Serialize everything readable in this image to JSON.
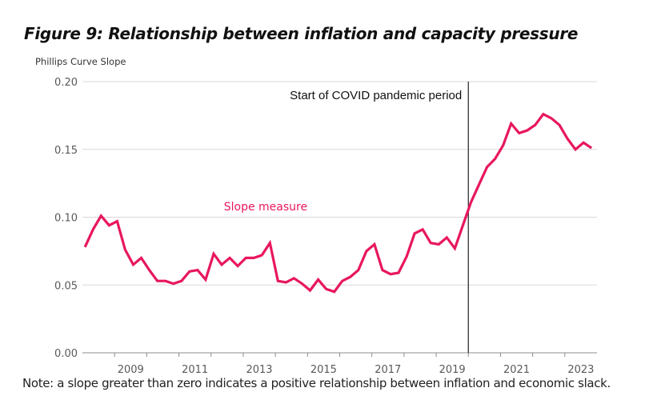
{
  "figure": {
    "title": "Figure 9: Relationship between inflation and capacity pressure",
    "note": "Note: a slope greater than zero indicates a positive relationship between inflation and economic slack."
  },
  "chart_data": {
    "type": "line",
    "title": "Figure 9: Relationship between inflation and capacity pressure",
    "xlabel": "",
    "ylabel": "Phillips Curve Slope",
    "xlim": [
      2008.0,
      2024.0
    ],
    "ylim": [
      0.0,
      0.2
    ],
    "grid": true,
    "y_ticks": [
      0.0,
      0.05,
      0.1,
      0.15,
      0.2
    ],
    "y_tick_labels": [
      "0.00",
      "0.05",
      "0.10",
      "0.15",
      "0.20"
    ],
    "x_ticks": [
      2009,
      2010,
      2011,
      2012,
      2013,
      2014,
      2015,
      2016,
      2017,
      2018,
      2019,
      2020,
      2021,
      2022,
      2023
    ],
    "x_tick_labels": [
      {
        "label": "2009",
        "at": 2009.5
      },
      {
        "label": "2011",
        "at": 2011.5
      },
      {
        "label": "2013",
        "at": 2013.5
      },
      {
        "label": "2015",
        "at": 2015.5
      },
      {
        "label": "2017",
        "at": 2017.5
      },
      {
        "label": "2019",
        "at": 2019.5
      },
      {
        "label": "2021",
        "at": 2021.5
      },
      {
        "label": "2023",
        "at": 2023.5
      }
    ],
    "color": "#E8175D",
    "series": [
      {
        "name": "Slope measure",
        "label": "Slope measure",
        "label_at": {
          "x": 2012.0,
          "y": 0.108
        },
        "x": [
          2008.08,
          2008.33,
          2008.58,
          2008.83,
          2009.08,
          2009.33,
          2009.58,
          2009.83,
          2010.08,
          2010.33,
          2010.58,
          2010.83,
          2011.08,
          2011.33,
          2011.58,
          2011.83,
          2012.08,
          2012.33,
          2012.58,
          2012.83,
          2013.08,
          2013.33,
          2013.58,
          2013.83,
          2014.08,
          2014.33,
          2014.58,
          2014.83,
          2015.08,
          2015.33,
          2015.58,
          2015.83,
          2016.08,
          2016.33,
          2016.58,
          2016.83,
          2017.08,
          2017.33,
          2017.58,
          2017.83,
          2018.08,
          2018.33,
          2018.58,
          2018.83,
          2019.08,
          2019.33,
          2019.58,
          2019.83,
          2020.08,
          2020.33,
          2020.58,
          2020.83,
          2021.08,
          2021.33,
          2021.58,
          2021.83,
          2022.08,
          2022.33,
          2022.58,
          2022.83,
          2023.08,
          2023.33,
          2023.58,
          2023.83
        ],
        "values": [
          0.078,
          0.091,
          0.101,
          0.094,
          0.097,
          0.076,
          0.065,
          0.07,
          0.061,
          0.053,
          0.053,
          0.051,
          0.053,
          0.06,
          0.061,
          0.054,
          0.073,
          0.065,
          0.07,
          0.064,
          0.07,
          0.07,
          0.072,
          0.081,
          0.053,
          0.052,
          0.055,
          0.051,
          0.046,
          0.054,
          0.047,
          0.045,
          0.053,
          0.056,
          0.061,
          0.075,
          0.08,
          0.061,
          0.058,
          0.059,
          0.071,
          0.088,
          0.091,
          0.081,
          0.08,
          0.085,
          0.077,
          0.094,
          0.111,
          0.124,
          0.137,
          0.143,
          0.153,
          0.169,
          0.162,
          0.164,
          0.168,
          0.176,
          0.173,
          0.168,
          0.158,
          0.15,
          0.155,
          0.151
        ]
      }
    ],
    "annotations": [
      {
        "type": "vline",
        "x": 2020.0,
        "text": "Start of COVID pandemic period"
      }
    ]
  }
}
